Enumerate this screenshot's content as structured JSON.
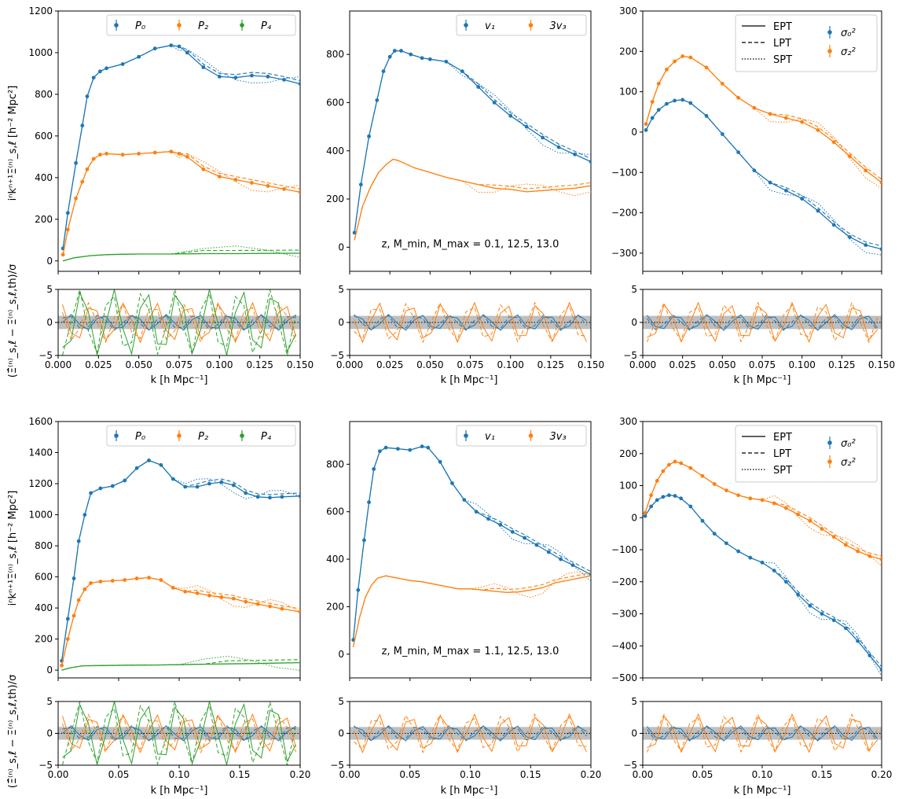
{
  "colors": {
    "blue": "#1f77b4",
    "orange": "#ff7f0e",
    "green": "#2ca02c",
    "band": "#bfbfbf"
  },
  "labels": {
    "ylabel_main": "iⁿkⁿ⁺¹Ξ⁽ⁿ⁾_s,ℓ [h⁻² Mpc²]",
    "ylabel_resid": "(Ξ̂⁽ⁿ⁾_s,ℓ − Ξ⁽ⁿ⁾_s,ℓ,th)/σ",
    "xlabel": "k [h Mpc⁻¹]"
  },
  "chart_data": [
    {
      "id": "r1c1",
      "type": "line",
      "xlim": [
        0,
        0.15
      ],
      "ylim": [
        -50,
        1200
      ],
      "yticks": [
        0,
        200,
        400,
        600,
        800,
        1000,
        1200
      ],
      "xticks": [
        0,
        0.025,
        0.05,
        0.075,
        0.1,
        0.125,
        0.15
      ],
      "xticklabels": [
        "0.000",
        "0.025",
        "0.050",
        "0.075",
        "0.100",
        "0.125",
        "0.150"
      ],
      "legend": {
        "loc": "top-right",
        "ncol": 3,
        "entries": [
          {
            "label": "P₀",
            "color": "blue"
          },
          {
            "label": "P₂",
            "color": "orange"
          },
          {
            "label": "P₄",
            "color": "green"
          }
        ]
      },
      "series": [
        {
          "color": "blue",
          "x": [
            0.003,
            0.006,
            0.011,
            0.015,
            0.018,
            0.022,
            0.026,
            0.03,
            0.04,
            0.05,
            0.06,
            0.07,
            0.075,
            0.08,
            0.09,
            0.1,
            0.11,
            0.12,
            0.13,
            0.14,
            0.15
          ],
          "y": [
            60,
            230,
            470,
            650,
            790,
            880,
            910,
            925,
            945,
            980,
            1020,
            1035,
            1030,
            1000,
            930,
            885,
            880,
            890,
            885,
            870,
            850
          ],
          "points": true
        },
        {
          "color": "orange",
          "x": [
            0.003,
            0.006,
            0.011,
            0.015,
            0.018,
            0.022,
            0.026,
            0.03,
            0.04,
            0.05,
            0.06,
            0.07,
            0.075,
            0.08,
            0.09,
            0.1,
            0.11,
            0.12,
            0.13,
            0.14,
            0.15
          ],
          "y": [
            30,
            150,
            300,
            380,
            440,
            490,
            510,
            515,
            510,
            515,
            520,
            525,
            515,
            500,
            440,
            405,
            390,
            375,
            360,
            345,
            330
          ],
          "points": true
        },
        {
          "color": "green",
          "x": [
            0.003,
            0.01,
            0.02,
            0.03,
            0.04,
            0.05,
            0.07,
            0.09,
            0.11,
            0.13,
            0.15
          ],
          "y": [
            0,
            15,
            25,
            30,
            32,
            33,
            33,
            35,
            35,
            36,
            37
          ],
          "points": false
        }
      ]
    },
    {
      "id": "r1c2",
      "type": "line",
      "xlim": [
        0,
        0.15
      ],
      "ylim": [
        -100,
        980
      ],
      "yticks": [
        0,
        200,
        400,
        600,
        800
      ],
      "xticks": [
        0,
        0.025,
        0.05,
        0.075,
        0.1,
        0.125,
        0.15
      ],
      "xticklabels": [
        "0.000",
        "0.025",
        "0.050",
        "0.075",
        "0.100",
        "0.125",
        "0.150"
      ],
      "annotation": "z, M_min, M_max = 0.1, 12.5, 13.0",
      "legend": {
        "loc": "top-right",
        "ncol": 2,
        "entries": [
          {
            "label": "v₁",
            "color": "blue"
          },
          {
            "label": "3v₃",
            "color": "orange"
          }
        ]
      },
      "series": [
        {
          "color": "blue",
          "x": [
            0.003,
            0.007,
            0.012,
            0.017,
            0.021,
            0.025,
            0.028,
            0.032,
            0.038,
            0.045,
            0.05,
            0.06,
            0.07,
            0.08,
            0.09,
            0.1,
            0.11,
            0.12,
            0.13,
            0.14,
            0.15
          ],
          "y": [
            60,
            260,
            460,
            610,
            730,
            790,
            815,
            815,
            800,
            785,
            780,
            770,
            730,
            665,
            600,
            545,
            500,
            455,
            415,
            385,
            355
          ],
          "points": true
        },
        {
          "color": "orange",
          "x": [
            0.003,
            0.008,
            0.013,
            0.018,
            0.023,
            0.027,
            0.03,
            0.04,
            0.05,
            0.06,
            0.07,
            0.08,
            0.09,
            0.1,
            0.11,
            0.12,
            0.13,
            0.14,
            0.15
          ],
          "y": [
            30,
            170,
            250,
            310,
            345,
            365,
            360,
            330,
            310,
            290,
            275,
            260,
            245,
            240,
            230,
            235,
            240,
            245,
            255
          ],
          "points": false
        }
      ]
    },
    {
      "id": "r1c3",
      "type": "line",
      "xlim": [
        0,
        0.15
      ],
      "ylim": [
        -345,
        300
      ],
      "yticks": [
        -300,
        -200,
        -100,
        0,
        100,
        200,
        300
      ],
      "xticks": [
        0,
        0.025,
        0.05,
        0.075,
        0.1,
        0.125,
        0.15
      ],
      "xticklabels": [
        "0.000",
        "0.025",
        "0.050",
        "0.075",
        "0.100",
        "0.125",
        "0.150"
      ],
      "legend": {
        "loc": "top-right",
        "ncol": 2,
        "entries": [
          {
            "label": "EPT",
            "style": "solid"
          },
          {
            "label": "LPT",
            "style": "dashed"
          },
          {
            "label": "SPT",
            "style": "dotted"
          },
          {
            "label": "σ₀²",
            "color": "blue"
          },
          {
            "label": "σ₂²",
            "color": "orange"
          }
        ]
      },
      "series": [
        {
          "color": "blue",
          "x": [
            0.002,
            0.006,
            0.01,
            0.015,
            0.02,
            0.025,
            0.03,
            0.04,
            0.05,
            0.06,
            0.07,
            0.08,
            0.09,
            0.1,
            0.11,
            0.12,
            0.13,
            0.14,
            0.15
          ],
          "y": [
            5,
            35,
            55,
            70,
            78,
            80,
            72,
            40,
            -5,
            -50,
            -95,
            -125,
            -145,
            -165,
            -195,
            -230,
            -260,
            -280,
            -290
          ],
          "points": true
        },
        {
          "color": "orange",
          "x": [
            0.002,
            0.006,
            0.01,
            0.015,
            0.02,
            0.025,
            0.03,
            0.04,
            0.05,
            0.06,
            0.07,
            0.08,
            0.09,
            0.1,
            0.11,
            0.12,
            0.13,
            0.14,
            0.15
          ],
          "y": [
            20,
            75,
            120,
            155,
            175,
            188,
            185,
            160,
            120,
            85,
            60,
            45,
            35,
            25,
            5,
            -25,
            -60,
            -95,
            -125
          ],
          "points": true
        }
      ]
    },
    {
      "id": "r2c1",
      "type": "line",
      "xlim": [
        0,
        0.2
      ],
      "ylim": [
        -50,
        1600
      ],
      "yticks": [
        0,
        200,
        400,
        600,
        800,
        1000,
        1200,
        1400,
        1600
      ],
      "xticks": [
        0,
        0.05,
        0.1,
        0.15,
        0.2
      ],
      "xticklabels": [
        "0.00",
        "0.05",
        "0.10",
        "0.15",
        "0.20"
      ],
      "legend": {
        "loc": "top-right",
        "ncol": 3,
        "entries": [
          {
            "label": "P₀",
            "color": "blue"
          },
          {
            "label": "P₂",
            "color": "orange"
          },
          {
            "label": "P₄",
            "color": "green"
          }
        ]
      },
      "series": [
        {
          "color": "blue",
          "x": [
            0.003,
            0.008,
            0.013,
            0.017,
            0.022,
            0.027,
            0.035,
            0.045,
            0.055,
            0.065,
            0.075,
            0.085,
            0.095,
            0.105,
            0.115,
            0.125,
            0.135,
            0.145,
            0.155,
            0.165,
            0.175,
            0.185,
            0.2
          ],
          "y": [
            60,
            330,
            590,
            830,
            1000,
            1140,
            1170,
            1185,
            1220,
            1300,
            1350,
            1320,
            1230,
            1180,
            1180,
            1200,
            1210,
            1190,
            1140,
            1115,
            1110,
            1115,
            1120
          ],
          "points": true
        },
        {
          "color": "orange",
          "x": [
            0.003,
            0.008,
            0.013,
            0.017,
            0.022,
            0.027,
            0.035,
            0.045,
            0.055,
            0.065,
            0.075,
            0.085,
            0.095,
            0.105,
            0.115,
            0.125,
            0.135,
            0.145,
            0.155,
            0.165,
            0.175,
            0.185,
            0.2
          ],
          "y": [
            30,
            200,
            350,
            450,
            520,
            560,
            570,
            575,
            580,
            590,
            595,
            580,
            530,
            505,
            495,
            480,
            470,
            460,
            440,
            425,
            410,
            395,
            375
          ],
          "points": true
        },
        {
          "color": "green",
          "x": [
            0.003,
            0.01,
            0.02,
            0.04,
            0.06,
            0.08,
            0.1,
            0.12,
            0.14,
            0.16,
            0.18,
            0.2
          ],
          "y": [
            0,
            15,
            28,
            30,
            32,
            33,
            35,
            38,
            40,
            42,
            45,
            48
          ],
          "points": false
        }
      ]
    },
    {
      "id": "r2c2",
      "type": "line",
      "xlim": [
        0,
        0.2
      ],
      "ylim": [
        -100,
        980
      ],
      "yticks": [
        0,
        200,
        400,
        600,
        800
      ],
      "xticks": [
        0,
        0.05,
        0.1,
        0.15,
        0.2
      ],
      "xticklabels": [
        "0.00",
        "0.05",
        "0.10",
        "0.15",
        "0.20"
      ],
      "annotation": "z, M_min, M_max = 1.1, 12.5, 13.0",
      "legend": {
        "loc": "top-right",
        "ncol": 2,
        "entries": [
          {
            "label": "v₁",
            "color": "blue"
          },
          {
            "label": "3v₃",
            "color": "orange"
          }
        ]
      },
      "series": [
        {
          "color": "blue",
          "x": [
            0.003,
            0.007,
            0.012,
            0.016,
            0.02,
            0.025,
            0.03,
            0.04,
            0.05,
            0.06,
            0.065,
            0.075,
            0.085,
            0.095,
            0.105,
            0.115,
            0.125,
            0.135,
            0.145,
            0.155,
            0.165,
            0.175,
            0.185,
            0.2
          ],
          "y": [
            60,
            270,
            480,
            640,
            780,
            855,
            870,
            865,
            860,
            875,
            870,
            810,
            720,
            650,
            600,
            570,
            545,
            515,
            490,
            460,
            430,
            400,
            375,
            335
          ],
          "points": true
        },
        {
          "color": "orange",
          "x": [
            0.003,
            0.008,
            0.013,
            0.018,
            0.023,
            0.03,
            0.04,
            0.05,
            0.06,
            0.07,
            0.08,
            0.09,
            0.1,
            0.11,
            0.12,
            0.13,
            0.14,
            0.15,
            0.16,
            0.17,
            0.18,
            0.19,
            0.2
          ],
          "y": [
            30,
            150,
            240,
            290,
            320,
            330,
            320,
            310,
            305,
            295,
            285,
            275,
            275,
            270,
            265,
            260,
            262,
            270,
            280,
            300,
            310,
            320,
            330
          ],
          "points": false
        }
      ]
    },
    {
      "id": "r2c3",
      "type": "line",
      "xlim": [
        0,
        0.2
      ],
      "ylim": [
        -500,
        300
      ],
      "yticks": [
        -500,
        -400,
        -300,
        -200,
        -100,
        0,
        100,
        200,
        300
      ],
      "xticks": [
        0,
        0.05,
        0.1,
        0.15,
        0.2
      ],
      "xticklabels": [
        "0.00",
        "0.05",
        "0.10",
        "0.15",
        "0.20"
      ],
      "legend": {
        "loc": "top-right",
        "ncol": 2,
        "entries": [
          {
            "label": "EPT",
            "style": "solid"
          },
          {
            "label": "LPT",
            "style": "dashed"
          },
          {
            "label": "SPT",
            "style": "dotted"
          },
          {
            "label": "σ₀²",
            "color": "blue"
          },
          {
            "label": "σ₂²",
            "color": "orange"
          }
        ]
      },
      "series": [
        {
          "color": "blue",
          "x": [
            0.002,
            0.007,
            0.012,
            0.017,
            0.022,
            0.027,
            0.032,
            0.04,
            0.05,
            0.06,
            0.07,
            0.08,
            0.09,
            0.1,
            0.11,
            0.12,
            0.13,
            0.14,
            0.15,
            0.16,
            0.17,
            0.18,
            0.19,
            0.2
          ],
          "y": [
            5,
            35,
            55,
            65,
            70,
            68,
            60,
            35,
            -10,
            -50,
            -80,
            -105,
            -125,
            -140,
            -165,
            -200,
            -240,
            -275,
            -300,
            -320,
            -345,
            -385,
            -430,
            -475
          ],
          "points": true
        },
        {
          "color": "orange",
          "x": [
            0.002,
            0.007,
            0.012,
            0.017,
            0.022,
            0.027,
            0.032,
            0.04,
            0.05,
            0.06,
            0.07,
            0.08,
            0.09,
            0.1,
            0.11,
            0.12,
            0.13,
            0.14,
            0.15,
            0.16,
            0.17,
            0.18,
            0.19,
            0.2
          ],
          "y": [
            15,
            70,
            115,
            145,
            165,
            175,
            170,
            155,
            130,
            105,
            85,
            70,
            60,
            55,
            45,
            30,
            10,
            -10,
            -35,
            -60,
            -85,
            -105,
            -120,
            -130
          ],
          "points": true
        }
      ]
    }
  ],
  "residuals": {
    "ylim": [
      -5,
      5
    ],
    "yticks": [
      -5,
      0,
      5
    ],
    "rows": [
      {
        "xlim": [
          0,
          0.15
        ],
        "xticks": [
          0,
          0.025,
          0.05,
          0.075,
          0.1,
          0.125,
          0.15
        ],
        "xticklabels": [
          "0.000",
          "0.025",
          "0.050",
          "0.075",
          "0.100",
          "0.125",
          "0.150"
        ]
      },
      {
        "xlim": [
          0,
          0.2
        ],
        "xticks": [
          0,
          0.05,
          0.1,
          0.15,
          0.2
        ],
        "xticklabels": [
          "0.00",
          "0.05",
          "0.10",
          "0.15",
          "0.20"
        ]
      }
    ]
  }
}
